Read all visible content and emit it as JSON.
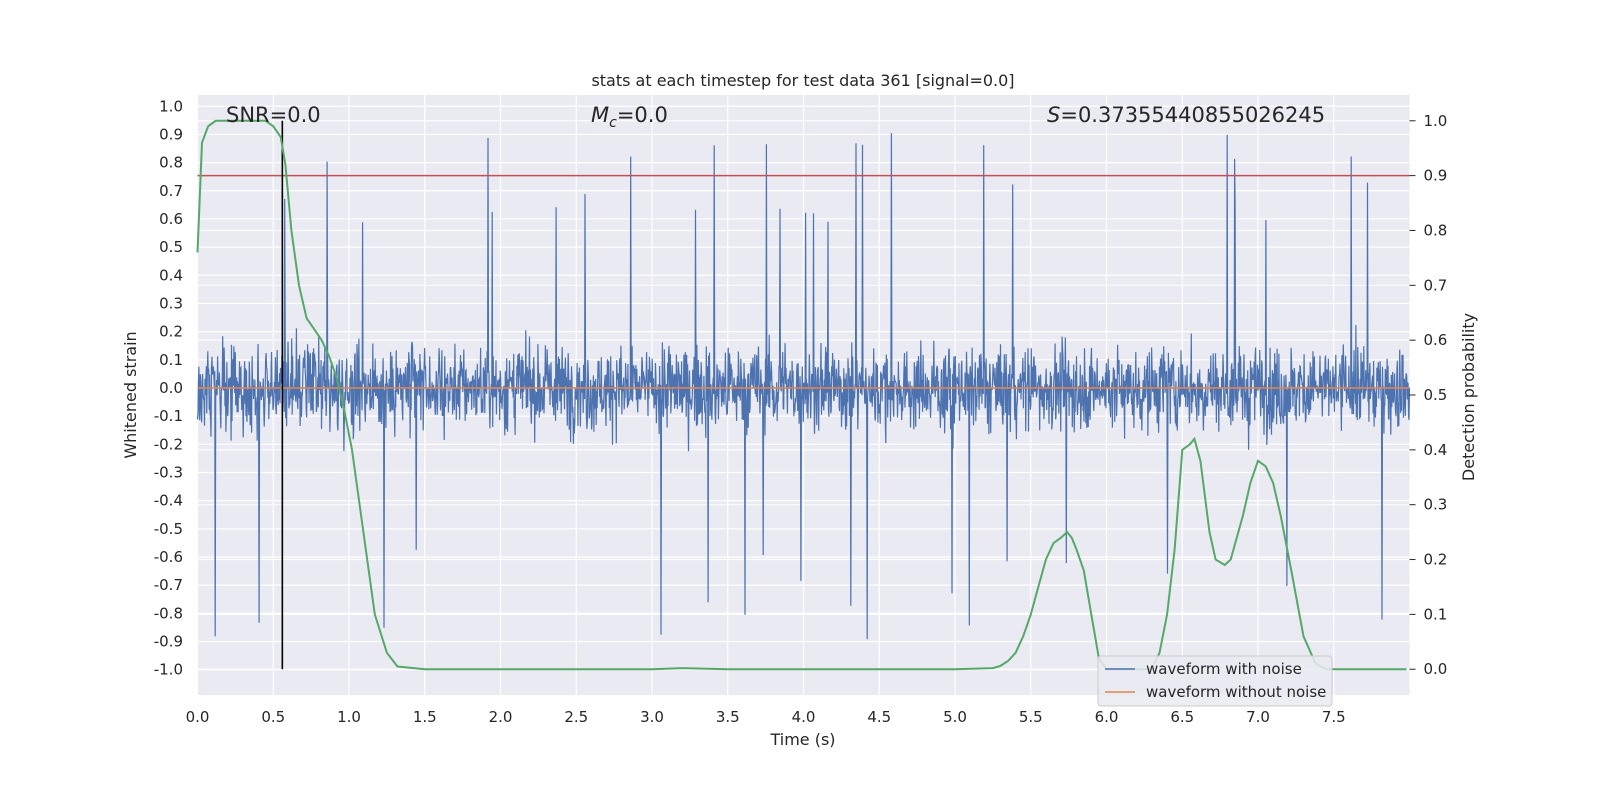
{
  "chart_data": {
    "type": "line",
    "title": "stats at each timestep for test data 361 [signal=0.0]",
    "xlabel": "Time (s)",
    "ylabel": "Whitened strain",
    "ylabel_right": "Detection probability",
    "xlim": [
      0.0,
      8.0
    ],
    "ylim": [
      -1.09,
      1.04
    ],
    "ylim_right": [
      -0.047,
      1.047
    ],
    "x_ticks": [
      "0.0",
      "0.5",
      "1.0",
      "1.5",
      "2.0",
      "2.5",
      "3.0",
      "3.5",
      "4.0",
      "4.5",
      "5.0",
      "5.5",
      "6.0",
      "6.5",
      "7.0",
      "7.5"
    ],
    "y_ticks": [
      "1.0",
      "0.9",
      "0.8",
      "0.7",
      "0.6",
      "0.5",
      "0.4",
      "0.3",
      "0.2",
      "0.1",
      "0.0",
      "-0.1",
      "-0.2",
      "-0.3",
      "-0.4",
      "-0.5",
      "-0.6",
      "-0.7",
      "-0.8",
      "-0.9",
      "-1.0"
    ],
    "y_ticks_right": [
      "1.0",
      "0.9",
      "0.8",
      "0.7",
      "0.6",
      "0.5",
      "0.4",
      "0.3",
      "0.2",
      "0.1",
      "0.0"
    ],
    "annotations": {
      "snr": "SNR=0.0",
      "mc_symbol": "M",
      "mc_sub": "c",
      "mc_value": "=0.0",
      "s_symbol": "S",
      "s_value": "=0.37355440855026245"
    },
    "threshold_line": {
      "value": 0.9,
      "axis": "right",
      "color": "#c44e52"
    },
    "vertical_marker": {
      "x": 0.56,
      "color": "#000000"
    },
    "series": [
      {
        "name": "waveform with noise",
        "color": "#4c72b0",
        "description": "dense whitened noise, typical range ±0.4, peaks to about ±0.9",
        "core_amplitude": 0.35,
        "peak_amplitude": 0.93,
        "x_range": [
          0.0,
          8.0
        ]
      },
      {
        "name": "waveform without noise",
        "color": "#dd8452",
        "x": [
          0.0,
          8.0
        ],
        "values": [
          0.0,
          0.0
        ]
      },
      {
        "name": "detection probability",
        "axis": "right",
        "color": "#55a868",
        "x": [
          0.0,
          0.03,
          0.07,
          0.12,
          0.18,
          0.25,
          0.35,
          0.45,
          0.5,
          0.55,
          0.58,
          0.62,
          0.67,
          0.72,
          0.77,
          0.82,
          0.87,
          0.92,
          0.97,
          1.02,
          1.07,
          1.12,
          1.17,
          1.25,
          1.32,
          1.5,
          2.0,
          2.5,
          3.0,
          3.2,
          3.5,
          4.0,
          4.5,
          5.0,
          5.25,
          5.3,
          5.35,
          5.4,
          5.45,
          5.5,
          5.55,
          5.6,
          5.65,
          5.7,
          5.74,
          5.77,
          5.8,
          5.85,
          5.9,
          5.95,
          6.0,
          6.1,
          6.2,
          6.3,
          6.35,
          6.4,
          6.45,
          6.5,
          6.55,
          6.58,
          6.62,
          6.68,
          6.72,
          6.78,
          6.82,
          6.86,
          6.9,
          6.95,
          7.0,
          7.05,
          7.1,
          7.15,
          7.22,
          7.3,
          7.38,
          7.45,
          7.5,
          7.6,
          7.7,
          7.8,
          7.98
        ],
        "values": [
          0.76,
          0.96,
          0.99,
          1.0,
          1.0,
          1.0,
          1.0,
          1.0,
          0.99,
          0.97,
          0.92,
          0.8,
          0.7,
          0.64,
          0.62,
          0.6,
          0.57,
          0.53,
          0.47,
          0.4,
          0.3,
          0.2,
          0.1,
          0.03,
          0.005,
          0.0,
          0.0,
          0.0,
          0.0,
          0.002,
          0.0,
          0.0,
          0.0,
          0.0,
          0.002,
          0.006,
          0.015,
          0.03,
          0.06,
          0.1,
          0.15,
          0.2,
          0.23,
          0.24,
          0.25,
          0.24,
          0.22,
          0.18,
          0.1,
          0.02,
          0.0,
          0.0,
          0.0,
          0.0,
          0.03,
          0.1,
          0.22,
          0.4,
          0.41,
          0.42,
          0.38,
          0.25,
          0.2,
          0.19,
          0.2,
          0.24,
          0.28,
          0.34,
          0.38,
          0.37,
          0.34,
          0.28,
          0.18,
          0.06,
          0.01,
          0.0,
          0.0,
          0.0,
          0.0,
          0.0,
          0.0
        ]
      }
    ],
    "legend": {
      "placement": "bottom-right",
      "entries": [
        {
          "label": "waveform with noise",
          "color": "#4c72b0"
        },
        {
          "label": "waveform without noise",
          "color": "#dd8452"
        }
      ]
    }
  }
}
